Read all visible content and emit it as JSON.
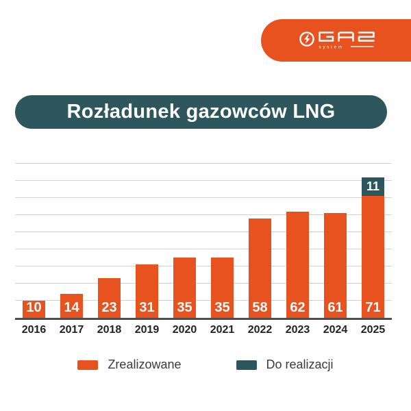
{
  "logo": {
    "brand": "GAZ",
    "sub": "system"
  },
  "title": "Rozładunek gazowców LNG",
  "colors": {
    "brand_orange": "#E7521F",
    "brand_teal": "#2D565D",
    "gridline": "#D2D2D2",
    "axis": "#4E4E4E",
    "background": "#FFFFFF",
    "year_label": "#222222",
    "legend_text": "#3A3A3A",
    "bar_value_text": "#FFFFFF"
  },
  "chart_data": {
    "type": "bar",
    "stacked": true,
    "title": "Rozładunek gazowców LNG",
    "categories": [
      "2016",
      "2017",
      "2018",
      "2019",
      "2020",
      "2021",
      "2022",
      "2023",
      "2024",
      "2025"
    ],
    "series": [
      {
        "name": "Zrealizowane",
        "color": "#E7521F",
        "values": [
          10,
          14,
          23,
          31,
          35,
          35,
          58,
          62,
          61,
          71
        ]
      },
      {
        "name": "Do realizacji",
        "color": "#2D565D",
        "values": [
          0,
          0,
          0,
          0,
          0,
          0,
          0,
          0,
          0,
          11
        ]
      }
    ],
    "xlabel": "",
    "ylabel": "",
    "ylim": [
      0,
      95
    ],
    "grid": true,
    "gridline_step": 10,
    "y_axis_labels_visible": false,
    "value_labels_position": "inside-bottom",
    "legend_position": "bottom"
  }
}
